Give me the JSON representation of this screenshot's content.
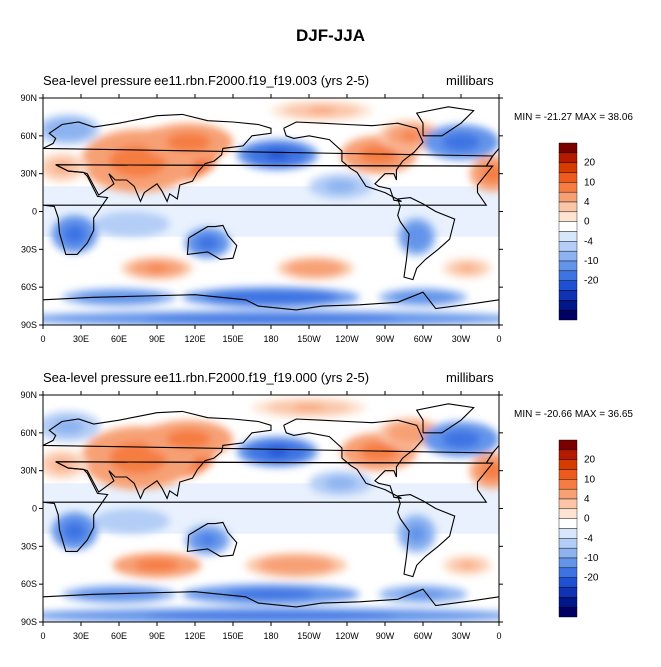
{
  "title": "DJF-JJA",
  "colorbar": {
    "colors": [
      "#7a0000",
      "#b31a00",
      "#d63b00",
      "#ec5a1e",
      "#f57d43",
      "#f7a074",
      "#fbc6a8",
      "#fde3d2",
      "#ffffff",
      "#d6e6fb",
      "#b3cdf6",
      "#8cb2f0",
      "#6394ea",
      "#3d73e3",
      "#1f50d3",
      "#0f33b3",
      "#00178a",
      "#000064"
    ],
    "ticks": [
      {
        "idx": 1,
        "label": "20"
      },
      {
        "idx": 3,
        "label": "10"
      },
      {
        "idx": 5,
        "label": "4"
      },
      {
        "idx": 7,
        "label": "0"
      },
      {
        "idx": 9,
        "label": "-4"
      },
      {
        "idx": 11,
        "label": "-10"
      },
      {
        "idx": 13,
        "label": "-20"
      }
    ]
  },
  "chart_data": [
    {
      "type": "heatmap",
      "variable": "Sea-level pressure",
      "case": "ee11.rbn.F2000.f19_f19.003 (yrs 2-5)",
      "units": "millibars",
      "min_label": "MIN = -21.27 MAX =  38.06",
      "min": -21.27,
      "max": 38.06,
      "xticks": [
        "0",
        "30E",
        "60E",
        "90E",
        "120E",
        "150E",
        "180",
        "150W",
        "120W",
        "90W",
        "60W",
        "30W",
        "0"
      ],
      "yticks": [
        "90N",
        "60N",
        "30N",
        "0",
        "30S",
        "60S",
        "90S"
      ],
      "xlim": [
        0,
        360
      ],
      "ylim": [
        -90,
        90
      ],
      "levels": [
        -25,
        -20,
        -15,
        -10,
        -6,
        -4,
        -2,
        0,
        2,
        4,
        6,
        10,
        15,
        20,
        25
      ],
      "features": [
        {
          "lon": 100,
          "lat": 45,
          "value": 28,
          "rlon": 38,
          "rlat": 22
        },
        {
          "lon": 75,
          "lat": 40,
          "value": 14,
          "rlon": 45,
          "rlat": 25
        },
        {
          "lon": 115,
          "lat": 55,
          "value": 14,
          "rlon": 35,
          "rlat": 15
        },
        {
          "lon": 265,
          "lat": 45,
          "value": 14,
          "rlon": 30,
          "rlat": 15
        },
        {
          "lon": 290,
          "lat": 60,
          "value": 10,
          "rlon": 25,
          "rlat": 12
        },
        {
          "lon": 355,
          "lat": 30,
          "value": 13,
          "rlon": 18,
          "rlat": 14
        },
        {
          "lon": 15,
          "lat": 35,
          "value": 6,
          "rlon": 20,
          "rlat": 12
        },
        {
          "lon": 220,
          "lat": 80,
          "value": 6,
          "rlon": 40,
          "rlat": 8
        },
        {
          "lon": 185,
          "lat": 45,
          "value": -17,
          "rlon": 32,
          "rlat": 12
        },
        {
          "lon": 330,
          "lat": 55,
          "value": -14,
          "rlon": 30,
          "rlat": 14
        },
        {
          "lon": 20,
          "lat": 65,
          "value": -6,
          "rlon": 25,
          "rlat": 12
        },
        {
          "lon": 235,
          "lat": 20,
          "value": -5,
          "rlon": 25,
          "rlat": 10
        },
        {
          "lon": 25,
          "lat": -18,
          "value": -12,
          "rlon": 18,
          "rlat": 15
        },
        {
          "lon": 130,
          "lat": -25,
          "value": -12,
          "rlon": 18,
          "rlat": 12
        },
        {
          "lon": 295,
          "lat": -20,
          "value": -9,
          "rlon": 15,
          "rlat": 15
        },
        {
          "lon": 70,
          "lat": -10,
          "value": -4,
          "rlon": 30,
          "rlat": 10
        },
        {
          "lon": 90,
          "lat": -45,
          "value": 11,
          "rlon": 28,
          "rlat": 9
        },
        {
          "lon": 215,
          "lat": -45,
          "value": 9,
          "rlon": 30,
          "rlat": 9
        },
        {
          "lon": 335,
          "lat": -45,
          "value": 7,
          "rlon": 20,
          "rlat": 8
        },
        {
          "lon": 180,
          "lat": -68,
          "value": -15,
          "rlon": 70,
          "rlat": 8
        },
        {
          "lon": 60,
          "lat": -68,
          "value": -10,
          "rlon": 45,
          "rlat": 7
        },
        {
          "lon": 300,
          "lat": -68,
          "value": -9,
          "rlon": 35,
          "rlat": 7
        },
        {
          "lon": 180,
          "lat": -85,
          "value": -14,
          "rlon": 200,
          "rlat": 6
        }
      ]
    },
    {
      "type": "heatmap",
      "variable": "Sea-level pressure",
      "case": "ee11.rbn.F2000.f19_f19.000 (yrs 2-5)",
      "units": "millibars",
      "min_label": "MIN = -20.66 MAX =  36.65",
      "min": -20.66,
      "max": 36.65,
      "xticks": [
        "0",
        "30E",
        "60E",
        "90E",
        "120E",
        "150E",
        "180",
        "150W",
        "120W",
        "90W",
        "60W",
        "30W",
        "0"
      ],
      "yticks": [
        "90N",
        "60N",
        "30N",
        "0",
        "30S",
        "60S",
        "90S"
      ],
      "xlim": [
        0,
        360
      ],
      "ylim": [
        -90,
        90
      ],
      "levels": [
        -25,
        -20,
        -15,
        -10,
        -6,
        -4,
        -2,
        0,
        2,
        4,
        6,
        10,
        15,
        20,
        25
      ],
      "features": [
        {
          "lon": 100,
          "lat": 45,
          "value": 26,
          "rlon": 36,
          "rlat": 22
        },
        {
          "lon": 75,
          "lat": 40,
          "value": 14,
          "rlon": 45,
          "rlat": 25
        },
        {
          "lon": 115,
          "lat": 55,
          "value": 14,
          "rlon": 35,
          "rlat": 15
        },
        {
          "lon": 265,
          "lat": 45,
          "value": 14,
          "rlon": 30,
          "rlat": 15
        },
        {
          "lon": 290,
          "lat": 60,
          "value": 9,
          "rlon": 25,
          "rlat": 12
        },
        {
          "lon": 355,
          "lat": 30,
          "value": 12,
          "rlon": 18,
          "rlat": 14
        },
        {
          "lon": 15,
          "lat": 35,
          "value": 6,
          "rlon": 20,
          "rlat": 12
        },
        {
          "lon": 210,
          "lat": 80,
          "value": 7,
          "rlon": 45,
          "rlat": 8
        },
        {
          "lon": 185,
          "lat": 45,
          "value": -16,
          "rlon": 32,
          "rlat": 12
        },
        {
          "lon": 330,
          "lat": 55,
          "value": -13,
          "rlon": 30,
          "rlat": 14
        },
        {
          "lon": 20,
          "lat": 65,
          "value": -5,
          "rlon": 25,
          "rlat": 12
        },
        {
          "lon": 235,
          "lat": 20,
          "value": -5,
          "rlon": 25,
          "rlat": 10
        },
        {
          "lon": 25,
          "lat": -18,
          "value": -12,
          "rlon": 18,
          "rlat": 15
        },
        {
          "lon": 130,
          "lat": -25,
          "value": -11,
          "rlon": 18,
          "rlat": 12
        },
        {
          "lon": 295,
          "lat": -20,
          "value": -8,
          "rlon": 15,
          "rlat": 15
        },
        {
          "lon": 70,
          "lat": -10,
          "value": -4,
          "rlon": 30,
          "rlat": 10
        },
        {
          "lon": 90,
          "lat": -45,
          "value": 12,
          "rlon": 35,
          "rlat": 10
        },
        {
          "lon": 200,
          "lat": -45,
          "value": 9,
          "rlon": 40,
          "rlat": 10
        },
        {
          "lon": 335,
          "lat": -45,
          "value": 6,
          "rlon": 20,
          "rlat": 8
        },
        {
          "lon": 180,
          "lat": -68,
          "value": -14,
          "rlon": 70,
          "rlat": 8
        },
        {
          "lon": 60,
          "lat": -68,
          "value": -9,
          "rlon": 45,
          "rlat": 7
        },
        {
          "lon": 300,
          "lat": -68,
          "value": -8,
          "rlon": 35,
          "rlat": 7
        },
        {
          "lon": 180,
          "lat": -85,
          "value": -13,
          "rlon": 200,
          "rlat": 6
        }
      ]
    }
  ]
}
